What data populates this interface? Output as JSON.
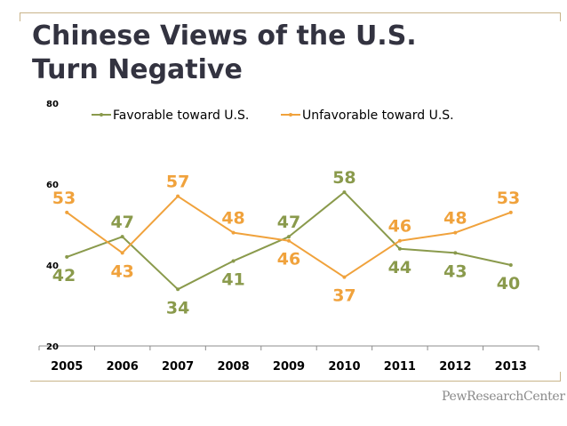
{
  "header": {
    "title_line1": "Chinese Views of the U.S.",
    "title_line2": "Turn Negative"
  },
  "branding": "PewResearchCenter",
  "colors": {
    "favorable": "#8a9a4c",
    "unfavorable": "#f0a23c",
    "axis": "#8c8c8c"
  },
  "chart_data": {
    "type": "line",
    "title": "Chinese Views of the U.S. Turn Negative",
    "categories": [
      "2005",
      "2006",
      "2007",
      "2008",
      "2009",
      "2010",
      "2011",
      "2012",
      "2013"
    ],
    "series": [
      {
        "name": "Favorable toward U.S.",
        "values": [
          42,
          47,
          34,
          41,
          47,
          58,
          44,
          43,
          40
        ]
      },
      {
        "name": "Unfavorable toward U.S.",
        "values": [
          53,
          43,
          57,
          48,
          46,
          37,
          46,
          48,
          53
        ]
      }
    ],
    "ylim": [
      20,
      80
    ],
    "yticks": [
      "20",
      "40",
      "60",
      "80"
    ],
    "xlabel": "",
    "ylabel": "",
    "legend_position": "top",
    "grid": false
  }
}
